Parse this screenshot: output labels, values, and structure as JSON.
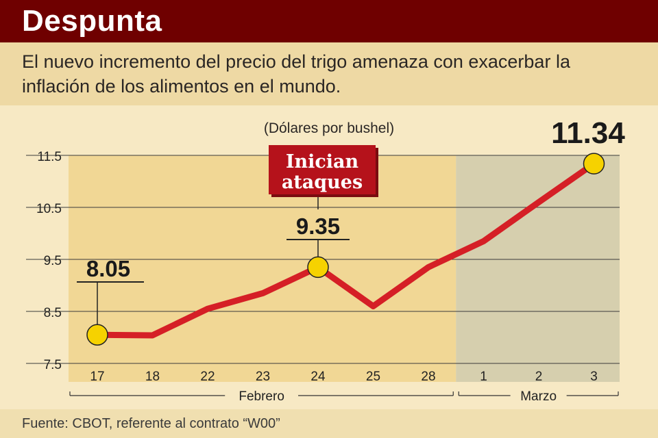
{
  "header": {
    "title": "Despunta",
    "subtitle": "El nuevo incremento del precio del trigo amenaza con exacerbar la inflación de los alimentos en el mundo."
  },
  "chart_data": {
    "type": "line",
    "unit_label": "(Dólares por bushel)",
    "categories": [
      "17",
      "18",
      "22",
      "23",
      "24",
      "25",
      "28",
      "1",
      "2",
      "3"
    ],
    "values": [
      8.05,
      8.04,
      8.55,
      8.85,
      9.35,
      8.6,
      9.35,
      9.85,
      10.6,
      11.34
    ],
    "ylim": [
      7.5,
      11.5
    ],
    "yticks": [
      "7.5",
      "8.5",
      "9.5",
      "10.5",
      "11.5"
    ],
    "month_groups": [
      {
        "label": "Febrero",
        "from": 0,
        "to": 6
      },
      {
        "label": "Marzo",
        "from": 7,
        "to": 9
      }
    ],
    "highlights": [
      {
        "index": 0,
        "label": "8.05"
      },
      {
        "index": 4,
        "label": "9.35"
      },
      {
        "index": 9,
        "label": "11.34"
      }
    ],
    "annotation": {
      "index": 4,
      "lines": [
        "Inician",
        "ataques"
      ]
    },
    "grid": true,
    "colors": {
      "line": "#d51f26",
      "marker": "#f6d200",
      "february_band": "#f1d795",
      "march_band": "#d6cfae",
      "annotation_bg": "#b5121b"
    }
  },
  "footer": {
    "source": "Fuente: CBOT, referente al contrato “W00”"
  }
}
